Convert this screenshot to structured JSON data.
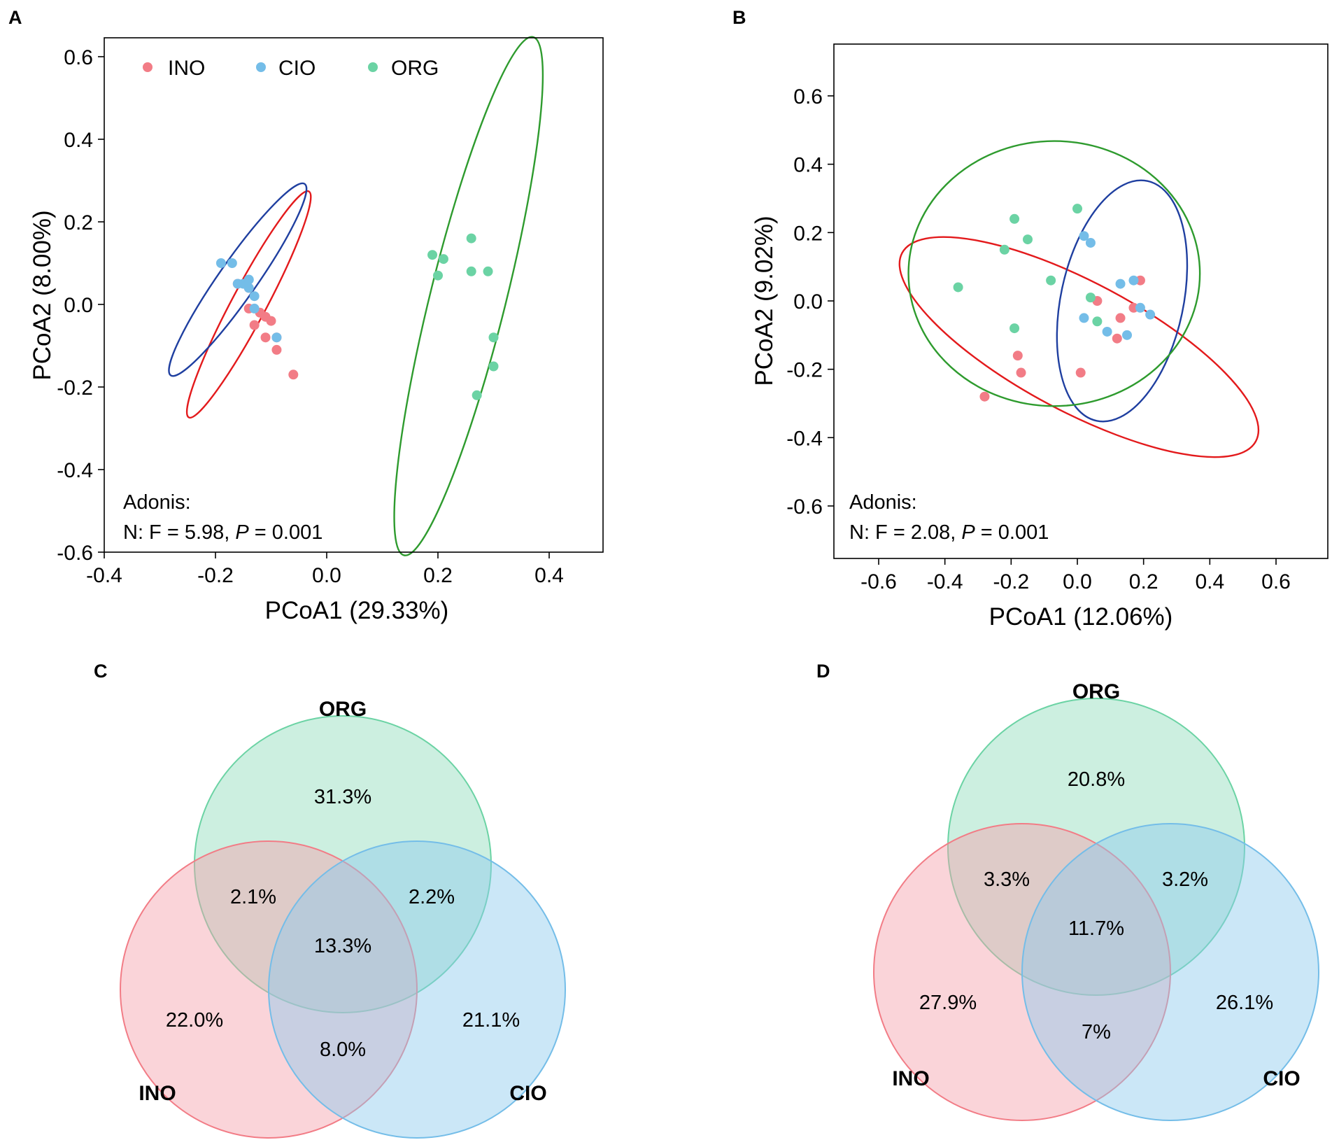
{
  "colors": {
    "INO_point": "#F27C86",
    "CIO_point": "#74BDE8",
    "ORG_point": "#6BD3A4",
    "INO_ellipse": "#E31A1C",
    "CIO_ellipse": "#1F3FA0",
    "ORG_ellipse": "#2E9B2E",
    "INO_venn": "#F4A0AA",
    "CIO_venn": "#8CCAEE",
    "ORG_venn": "#8FDCBB"
  },
  "panels": {
    "A": "A",
    "B": "B",
    "C": "C",
    "D": "D"
  },
  "chart_data": [
    {
      "type": "scatter",
      "panel": "A",
      "xlabel": "PCoA1 (29.33%)",
      "ylabel": "PCoA2 (8.00%)",
      "xlim": [
        -0.4,
        0.5
      ],
      "ylim": [
        -0.6,
        0.65
      ],
      "xticks": [
        -0.4,
        -0.2,
        0.0,
        0.2,
        0.4
      ],
      "xtick_labels": [
        "-0.4",
        "-0.2",
        "0.0",
        "0.2",
        "0.4"
      ],
      "yticks": [
        -0.6,
        -0.4,
        -0.2,
        0.0,
        0.2,
        0.4,
        0.6
      ],
      "ytick_labels": [
        "-0.6",
        "-0.4",
        "-0.2",
        "0.0",
        "0.2",
        "0.4",
        "0.6"
      ],
      "legend": [
        "INO",
        "CIO",
        "ORG"
      ],
      "legend_position": "top-left",
      "annotation": {
        "line1": "Adonis:",
        "prefix": "N: F = 5.98, ",
        "p_symbol": "P",
        "suffix": " = 0.001"
      },
      "series": [
        {
          "name": "INO",
          "points": [
            [
              -0.16,
              0.05
            ],
            [
              -0.14,
              0.04
            ],
            [
              -0.14,
              -0.01
            ],
            [
              -0.13,
              -0.05
            ],
            [
              -0.12,
              -0.02
            ],
            [
              -0.11,
              -0.03
            ],
            [
              -0.11,
              -0.08
            ],
            [
              -0.1,
              -0.04
            ],
            [
              -0.09,
              -0.08
            ],
            [
              -0.09,
              -0.11
            ],
            [
              -0.06,
              -0.17
            ]
          ]
        },
        {
          "name": "CIO",
          "points": [
            [
              -0.19,
              0.1
            ],
            [
              -0.17,
              0.1
            ],
            [
              -0.16,
              0.05
            ],
            [
              -0.15,
              0.05
            ],
            [
              -0.14,
              0.04
            ],
            [
              -0.14,
              0.06
            ],
            [
              -0.14,
              0.06
            ],
            [
              -0.13,
              -0.01
            ],
            [
              -0.13,
              0.02
            ],
            [
              -0.09,
              -0.08
            ]
          ]
        },
        {
          "name": "ORG",
          "points": [
            [
              0.19,
              0.12
            ],
            [
              0.2,
              0.07
            ],
            [
              0.21,
              0.11
            ],
            [
              0.26,
              0.16
            ],
            [
              0.26,
              0.08
            ],
            [
              0.29,
              0.08
            ],
            [
              0.3,
              -0.08
            ],
            [
              0.3,
              -0.15
            ],
            [
              0.27,
              -0.22
            ]
          ]
        }
      ],
      "ellipses": [
        {
          "group": "INO",
          "cx": -0.14,
          "cy": 0.0,
          "rx": 0.23,
          "ry": 0.031,
          "angle": -62
        },
        {
          "group": "CIO",
          "cx": -0.16,
          "cy": 0.06,
          "rx": 0.21,
          "ry": 0.034,
          "angle": -55
        },
        {
          "group": "ORG",
          "cx": 0.255,
          "cy": 0.02,
          "rx": 0.48,
          "ry": 0.068,
          "angle": -76
        }
      ]
    },
    {
      "type": "scatter",
      "panel": "B",
      "xlabel": "PCoA1 (12.06%)",
      "ylabel": "PCoA2 (9.02%)",
      "xlim": [
        -0.75,
        0.75
      ],
      "ylim": [
        -0.75,
        0.75
      ],
      "xticks": [
        -0.6,
        -0.4,
        -0.2,
        0.0,
        0.2,
        0.4,
        0.6
      ],
      "xtick_labels": [
        "-0.6",
        "-0.4",
        "-0.2",
        "0.0",
        "0.2",
        "0.4",
        "0.6"
      ],
      "yticks": [
        -0.6,
        -0.4,
        -0.2,
        0.0,
        0.2,
        0.4,
        0.6
      ],
      "ytick_labels": [
        "-0.6",
        "-0.4",
        "-0.2",
        "0.0",
        "0.2",
        "0.4",
        "0.6"
      ],
      "annotation": {
        "line1": "Adonis:",
        "prefix": "N: F = 2.08, ",
        "p_symbol": "P",
        "suffix": " = 0.001"
      },
      "series": [
        {
          "name": "INO",
          "points": [
            [
              -0.28,
              -0.28
            ],
            [
              -0.18,
              -0.16
            ],
            [
              -0.17,
              -0.21
            ],
            [
              0.01,
              -0.21
            ],
            [
              0.06,
              0.0
            ],
            [
              0.12,
              -0.11
            ],
            [
              0.13,
              -0.05
            ],
            [
              0.17,
              -0.02
            ],
            [
              0.19,
              0.06
            ]
          ]
        },
        {
          "name": "CIO",
          "points": [
            [
              0.02,
              0.19
            ],
            [
              0.04,
              0.17
            ],
            [
              0.02,
              -0.05
            ],
            [
              0.09,
              -0.09
            ],
            [
              0.13,
              0.05
            ],
            [
              0.15,
              -0.1
            ],
            [
              0.17,
              0.06
            ],
            [
              0.19,
              -0.02
            ],
            [
              0.22,
              -0.04
            ]
          ]
        },
        {
          "name": "ORG",
          "points": [
            [
              -0.36,
              0.04
            ],
            [
              -0.22,
              0.15
            ],
            [
              -0.19,
              0.24
            ],
            [
              -0.15,
              0.18
            ],
            [
              -0.08,
              0.06
            ],
            [
              0.0,
              0.27
            ],
            [
              0.04,
              0.01
            ],
            [
              0.06,
              -0.06
            ],
            [
              -0.19,
              -0.08
            ]
          ]
        }
      ],
      "ellipses": [
        {
          "group": "INO",
          "cx": 0.005,
          "cy": -0.135,
          "rx": 0.605,
          "ry": 0.195,
          "angle": 28
        },
        {
          "group": "CIO",
          "cx": 0.135,
          "cy": 0.0,
          "rx": 0.37,
          "ry": 0.185,
          "angle": -78
        },
        {
          "group": "ORG",
          "cx": -0.07,
          "cy": 0.08,
          "rx": 0.44,
          "ry": 0.4,
          "angle": 0
        }
      ]
    },
    {
      "type": "venn",
      "panel": "C",
      "sets": [
        "ORG",
        "INO",
        "CIO"
      ],
      "regions": {
        "ORG_only": "31.3%",
        "INO_only": "22.0%",
        "CIO_only": "21.1%",
        "ORG_INO": "2.1%",
        "ORG_CIO": "2.2%",
        "INO_CIO": "8.0%",
        "all": "13.3%"
      }
    },
    {
      "type": "venn",
      "panel": "D",
      "sets": [
        "ORG",
        "INO",
        "CIO"
      ],
      "regions": {
        "ORG_only": "20.8%",
        "INO_only": "27.9%",
        "CIO_only": "26.1%",
        "ORG_INO": "3.3%",
        "ORG_CIO": "3.2%",
        "INO_CIO": "7%",
        "all": "11.7%"
      }
    }
  ]
}
